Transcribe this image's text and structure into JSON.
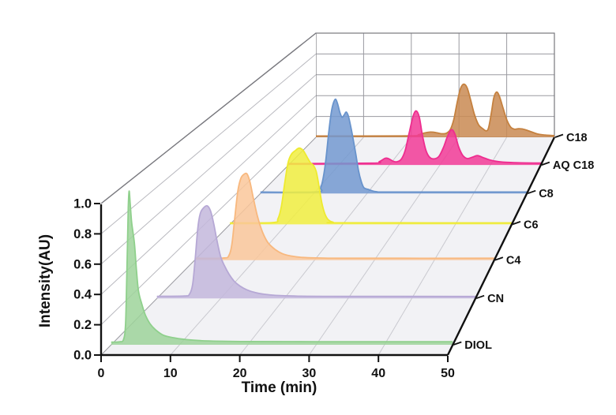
{
  "figure": {
    "background": "#ffffff",
    "floor_color": "#f2f2f5",
    "wall_color": "#ffffff",
    "grid_color_floor": "#c9c9cf",
    "grid_color_wall": "#b9b9bf",
    "grid_color_backwall": "#9a9aa0",
    "edge_color": "#77777d",
    "axis_color": "#111111"
  },
  "chart_data": {
    "type": "area",
    "variant": "3d-waterfall-chromatogram",
    "title": "",
    "xlabel": "Time (min)",
    "ylabel": "Intensity(AU)",
    "xlim": [
      0,
      50
    ],
    "ylim": [
      0.0,
      1.0
    ],
    "x_ticks": [
      "0",
      "10",
      "20",
      "30",
      "40",
      "50"
    ],
    "y_ticks": [
      "0.0",
      "0.2",
      "0.4",
      "0.6",
      "0.8",
      "1.0"
    ],
    "grid": true,
    "z_axis_labels_front_to_back": [
      "DIOL",
      "CN",
      "C4",
      "C6",
      "C8",
      "AQ C18",
      "C18"
    ],
    "series": [
      {
        "name": "DIOL",
        "stroke": "#8fd08c",
        "fill": "#9ed49a",
        "depth_fraction": 0.047,
        "points": [
          [
            0,
            0.018
          ],
          [
            1.2,
            0.02
          ],
          [
            1.8,
            0.035
          ],
          [
            2.1,
            0.14
          ],
          [
            2.3,
            0.5
          ],
          [
            2.5,
            0.92
          ],
          [
            2.62,
            1.03
          ],
          [
            2.78,
            0.95
          ],
          [
            3.0,
            0.82
          ],
          [
            3.4,
            0.68
          ],
          [
            3.7,
            0.5
          ],
          [
            4.0,
            0.36
          ],
          [
            4.5,
            0.27
          ],
          [
            5.0,
            0.2
          ],
          [
            5.7,
            0.14
          ],
          [
            6.5,
            0.1
          ],
          [
            7.6,
            0.065
          ],
          [
            9,
            0.048
          ],
          [
            11,
            0.035
          ],
          [
            13,
            0.028
          ],
          [
            16,
            0.024
          ],
          [
            20,
            0.022
          ],
          [
            30,
            0.021
          ],
          [
            40,
            0.021
          ],
          [
            50,
            0.021
          ]
        ]
      },
      {
        "name": "CN",
        "stroke": "#b6a8d5",
        "fill": "#c3b7dc",
        "depth_fraction": 0.26,
        "points": [
          [
            0,
            0.015
          ],
          [
            4.3,
            0.017
          ],
          [
            5.1,
            0.03
          ],
          [
            5.6,
            0.1
          ],
          [
            6.0,
            0.28
          ],
          [
            6.4,
            0.5
          ],
          [
            6.8,
            0.61
          ],
          [
            7.3,
            0.65
          ],
          [
            7.9,
            0.665
          ],
          [
            8.4,
            0.63
          ],
          [
            8.9,
            0.54
          ],
          [
            9.4,
            0.42
          ],
          [
            10,
            0.3
          ],
          [
            10.6,
            0.235
          ],
          [
            11.3,
            0.175
          ],
          [
            12.1,
            0.125
          ],
          [
            13,
            0.09
          ],
          [
            14.1,
            0.062
          ],
          [
            15.4,
            0.042
          ],
          [
            16.8,
            0.03
          ],
          [
            18.6,
            0.022
          ],
          [
            21.5,
            0.017
          ],
          [
            26,
            0.015
          ],
          [
            50,
            0.014
          ]
        ]
      },
      {
        "name": "C4",
        "stroke": "#f8b87e",
        "fill": "#fac79a",
        "depth_fraction": 0.436,
        "points": [
          [
            0,
            0.014
          ],
          [
            4.8,
            0.016
          ],
          [
            5.7,
            0.035
          ],
          [
            6.2,
            0.12
          ],
          [
            6.7,
            0.33
          ],
          [
            7.2,
            0.53
          ],
          [
            7.7,
            0.625
          ],
          [
            8.2,
            0.655
          ],
          [
            8.7,
            0.66
          ],
          [
            9.2,
            0.6
          ],
          [
            9.8,
            0.47
          ],
          [
            10.5,
            0.33
          ],
          [
            11.3,
            0.215
          ],
          [
            12.2,
            0.135
          ],
          [
            13.4,
            0.082
          ],
          [
            14.6,
            0.05
          ],
          [
            16,
            0.032
          ],
          [
            18,
            0.02
          ],
          [
            21,
            0.016
          ],
          [
            26,
            0.014
          ],
          [
            50,
            0.014
          ]
        ]
      },
      {
        "name": "C6",
        "stroke": "#eeea30",
        "fill": "#f1ee3f",
        "depth_fraction": 0.6,
        "points": [
          [
            0,
            0.012
          ],
          [
            7.6,
            0.015
          ],
          [
            8.5,
            0.045
          ],
          [
            9.1,
            0.14
          ],
          [
            9.7,
            0.33
          ],
          [
            10.3,
            0.5
          ],
          [
            10.9,
            0.57
          ],
          [
            11.6,
            0.6
          ],
          [
            12.3,
            0.62
          ],
          [
            13.0,
            0.6
          ],
          [
            13.7,
            0.545
          ],
          [
            14.3,
            0.5
          ],
          [
            14.8,
            0.48
          ],
          [
            15.3,
            0.43
          ],
          [
            15.8,
            0.31
          ],
          [
            16.3,
            0.175
          ],
          [
            16.8,
            0.09
          ],
          [
            17.4,
            0.04
          ],
          [
            18.3,
            0.018
          ],
          [
            20,
            0.013
          ],
          [
            50,
            0.012
          ]
        ]
      },
      {
        "name": "C8",
        "stroke": "#6893cc",
        "fill": "#7399d0",
        "depth_fraction": 0.742,
        "points": [
          [
            0,
            0.012
          ],
          [
            10.5,
            0.014
          ],
          [
            11.3,
            0.05
          ],
          [
            11.8,
            0.14
          ],
          [
            12.3,
            0.3
          ],
          [
            12.8,
            0.52
          ],
          [
            13.3,
            0.7
          ],
          [
            13.7,
            0.78
          ],
          [
            14.1,
            0.81
          ],
          [
            14.5,
            0.765
          ],
          [
            14.9,
            0.695
          ],
          [
            15.3,
            0.655
          ],
          [
            15.7,
            0.675
          ],
          [
            16.1,
            0.7
          ],
          [
            16.5,
            0.665
          ],
          [
            16.9,
            0.585
          ],
          [
            17.4,
            0.465
          ],
          [
            17.9,
            0.335
          ],
          [
            18.4,
            0.195
          ],
          [
            18.9,
            0.105
          ],
          [
            19.4,
            0.05
          ],
          [
            20.2,
            0.035
          ],
          [
            20.8,
            0.025
          ],
          [
            21.8,
            0.015
          ],
          [
            25,
            0.012
          ],
          [
            50,
            0.012
          ]
        ]
      },
      {
        "name": "AQ C18",
        "stroke": "#ee2d8f",
        "fill": "#f23b97",
        "depth_fraction": 0.873,
        "points": [
          [
            0,
            0.012
          ],
          [
            16.5,
            0.016
          ],
          [
            18,
            0.03
          ],
          [
            19.1,
            0.06
          ],
          [
            19.8,
            0.057
          ],
          [
            20.7,
            0.034
          ],
          [
            21.4,
            0.028
          ],
          [
            22.3,
            0.05
          ],
          [
            23.1,
            0.13
          ],
          [
            23.9,
            0.29
          ],
          [
            24.7,
            0.445
          ],
          [
            25.3,
            0.49
          ],
          [
            25.9,
            0.435
          ],
          [
            26.5,
            0.275
          ],
          [
            27.2,
            0.135
          ],
          [
            27.9,
            0.072
          ],
          [
            28.8,
            0.055
          ],
          [
            29.8,
            0.078
          ],
          [
            30.7,
            0.16
          ],
          [
            31.5,
            0.26
          ],
          [
            32.3,
            0.32
          ],
          [
            33.0,
            0.275
          ],
          [
            33.7,
            0.165
          ],
          [
            34.5,
            0.088
          ],
          [
            35.4,
            0.058
          ],
          [
            36.4,
            0.07
          ],
          [
            37.4,
            0.085
          ],
          [
            38.5,
            0.068
          ],
          [
            39.7,
            0.048
          ],
          [
            41,
            0.034
          ],
          [
            43,
            0.024
          ],
          [
            46,
            0.019
          ],
          [
            50,
            0.017
          ]
        ]
      },
      {
        "name": "C18",
        "stroke": "#c5813f",
        "fill": "#c98a52",
        "depth_fraction": 1.0,
        "points": [
          [
            0,
            0.012
          ],
          [
            20,
            0.014
          ],
          [
            21.5,
            0.025
          ],
          [
            22.8,
            0.042
          ],
          [
            24,
            0.05
          ],
          [
            25.2,
            0.045
          ],
          [
            26.3,
            0.034
          ],
          [
            27.4,
            0.04
          ],
          [
            28.2,
            0.075
          ],
          [
            28.9,
            0.17
          ],
          [
            29.6,
            0.33
          ],
          [
            30.3,
            0.465
          ],
          [
            31.0,
            0.51
          ],
          [
            31.7,
            0.475
          ],
          [
            32.4,
            0.365
          ],
          [
            33.2,
            0.225
          ],
          [
            34.1,
            0.12
          ],
          [
            35.0,
            0.082
          ],
          [
            35.7,
            0.062
          ],
          [
            36.2,
            0.09
          ],
          [
            36.8,
            0.24
          ],
          [
            37.3,
            0.38
          ],
          [
            37.9,
            0.435
          ],
          [
            38.5,
            0.39
          ],
          [
            39.2,
            0.285
          ],
          [
            40.0,
            0.17
          ],
          [
            40.8,
            0.1
          ],
          [
            41.6,
            0.078
          ],
          [
            42.4,
            0.082
          ],
          [
            43.2,
            0.08
          ],
          [
            44.2,
            0.068
          ],
          [
            45.3,
            0.05
          ],
          [
            46.6,
            0.03
          ],
          [
            48,
            0.022
          ],
          [
            50,
            0.016
          ]
        ]
      }
    ]
  }
}
